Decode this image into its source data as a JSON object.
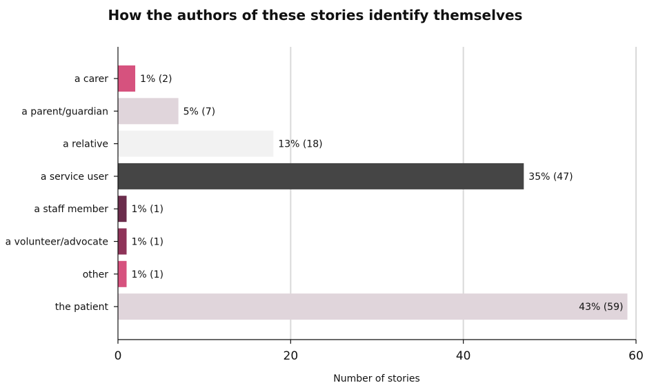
{
  "chart_data": {
    "type": "bar",
    "orientation": "horizontal",
    "title": "How the authors of these stories identify themselves",
    "xlabel": "Number of stories",
    "ylabel": "",
    "xlim": [
      0,
      60
    ],
    "xticks": [
      0,
      20,
      40,
      60
    ],
    "grid": true,
    "categories": [
      "a carer",
      "a parent/guardian",
      "a relative",
      "a service user",
      "a staff member",
      "a volunteer/advocate",
      "other",
      "the patient"
    ],
    "values": [
      2,
      7,
      18,
      47,
      1,
      1,
      1,
      59
    ],
    "labels": [
      "1% (2)",
      "5% (7)",
      "13% (18)",
      "35% (47)",
      "1% (1)",
      "1% (1)",
      "1% (1)",
      "43% (59)"
    ],
    "colors": [
      "#d6527e",
      "#e0d5db",
      "#f2f2f2",
      "#454545",
      "#6b2d4c",
      "#8e3358",
      "#d6527e",
      "#e0d5db"
    ]
  }
}
